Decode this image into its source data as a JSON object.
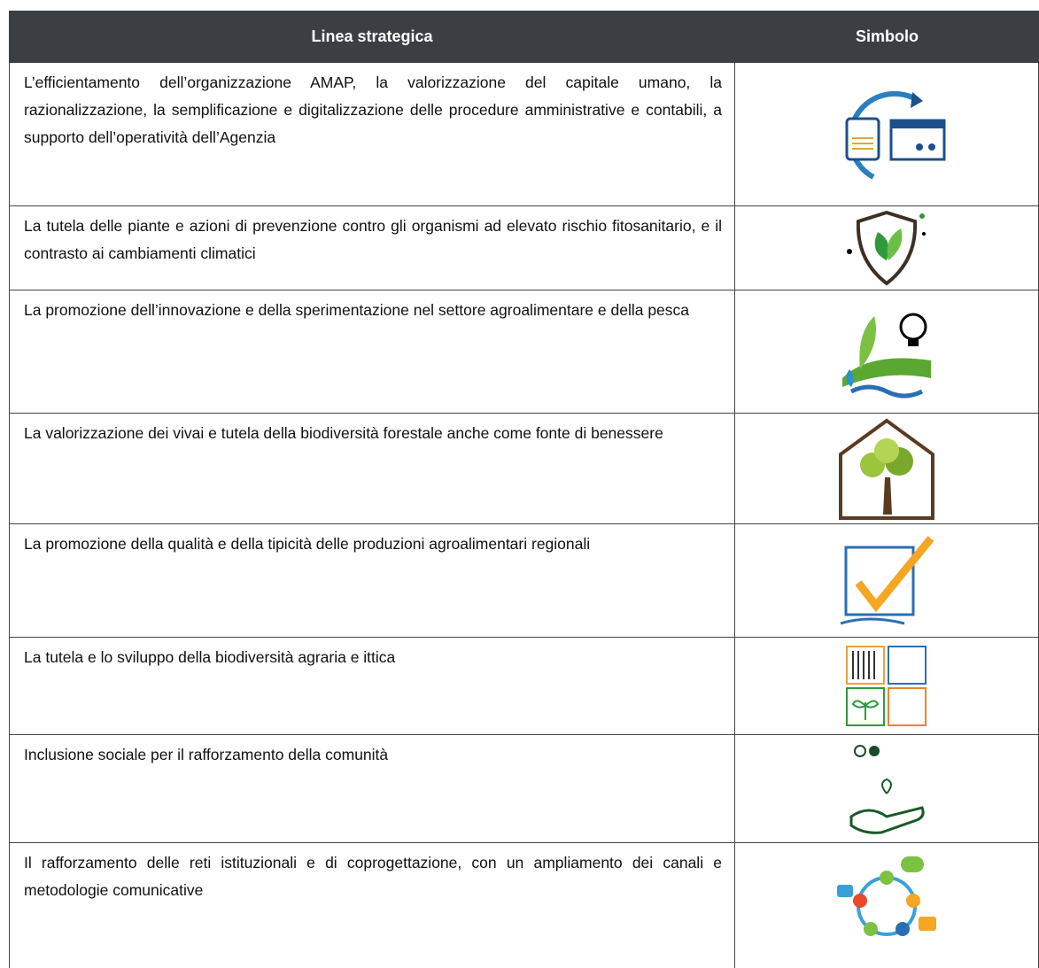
{
  "table": {
    "header": [
      "Linea strategica",
      "Simbolo"
    ],
    "rows": [
      "L’efficientamento dell’organizzazione AMAP, la valorizzazione del capitale umano, la razionalizzazione, la semplificazione e digitalizzazione delle procedure amministrative e contabili, a supporto dell’operatività dell’Agenzia",
      "La tutela delle piante e azioni di prevenzione contro gli organismi ad elevato rischio fitosanitario, e il contrasto ai cambiamenti climatici",
      "La promozione dell’innovazione e della sperimentazione nel settore agroalimentare e della pesca",
      "La valorizzazione dei vivai e tutela della biodiversità forestale anche come fonte di benessere",
      "La promozione della qualità e della tipicità delle produzioni agroalimentari regionali",
      "La tutela e lo sviluppo della biodiversità agraria e ittica",
      "Inclusione sociale per il rafforzamento della comunità",
      "Il rafforzamento delle reti istituzionali e di coprogettazione, con un ampliamento dei canali e metodologie comunicative"
    ]
  }
}
